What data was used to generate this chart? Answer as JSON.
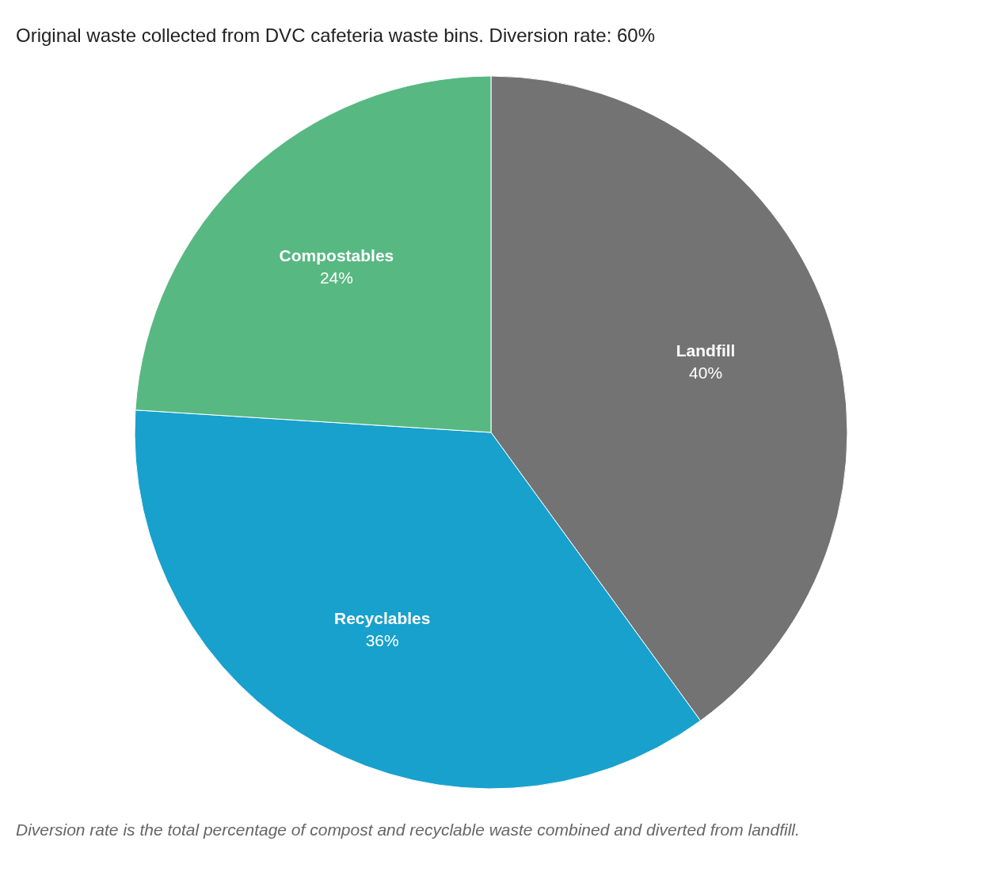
{
  "chart_data": {
    "type": "pie",
    "title": "Original waste collected from DVC cafeteria waste bins. Diversion rate: 60%",
    "categories": [
      "Landfill",
      "Recyclables",
      "Compostables"
    ],
    "values": [
      40,
      36,
      24
    ],
    "colors": [
      "#737373",
      "#18a1cd",
      "#58b882"
    ],
    "value_labels": [
      "40%",
      "36%",
      "24%"
    ],
    "legend": false,
    "annotations": [
      "Diversion rate is the total percentage of compost and recyclable waste combined and diverted from landfill."
    ]
  }
}
